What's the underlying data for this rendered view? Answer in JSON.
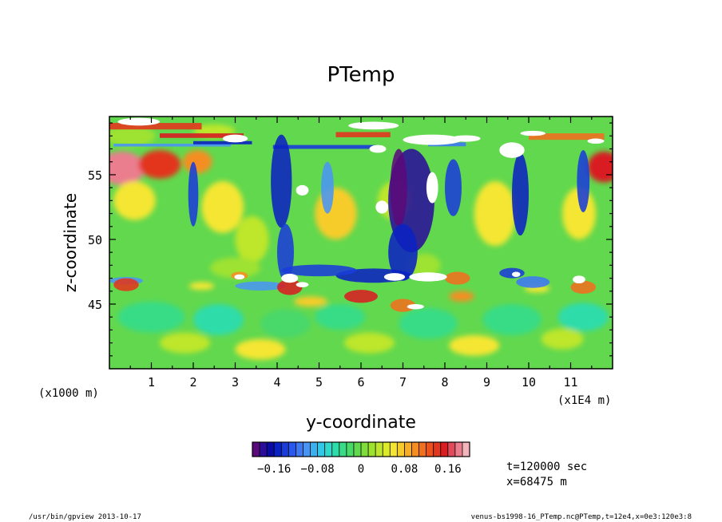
{
  "chart_data": {
    "type": "heatmap",
    "title": "PTemp",
    "xlabel": "y-coordinate",
    "ylabel": "z-coordinate",
    "xunit": "(x1E4 m)",
    "yunit": "(x1000 m)",
    "xlim": [
      0,
      12
    ],
    "ylim": [
      40,
      59.5
    ],
    "xticks": [
      "1",
      "2",
      "3",
      "4",
      "5",
      "6",
      "7",
      "8",
      "9",
      "10",
      "11"
    ],
    "yticks": [
      "45",
      "50",
      "55"
    ],
    "colorbar": {
      "ticks": [
        "-0.16",
        "-0.08",
        "0",
        "0.08",
        "0.16"
      ],
      "tick_values": [
        -0.16,
        -0.08,
        0,
        0.08,
        0.16
      ],
      "range": [
        -0.2,
        0.2
      ],
      "colors": [
        "#5a0a7a",
        "#2a0e9a",
        "#0a0aa6",
        "#0b22c2",
        "#1a3cd8",
        "#2a58ea",
        "#3e78f2",
        "#4a95f4",
        "#3ab0ee",
        "#30c8e6",
        "#30d8cc",
        "#2edcaa",
        "#38dc86",
        "#4ad86a",
        "#62d84e",
        "#7edc3c",
        "#9ee230",
        "#bee62c",
        "#dcea2a",
        "#f4e630",
        "#f6cc2a",
        "#f6ae26",
        "#f48e24",
        "#f07020",
        "#ea521e",
        "#e2361e",
        "#d81e22",
        "#e04a5a",
        "#ea7e8e",
        "#f4b4bc"
      ]
    }
  },
  "annotations": {
    "time": "t=120000 sec",
    "position": "x=68475 m"
  },
  "footer": {
    "left": "/usr/bin/gpview   2013-10-17",
    "right": "venus-bs1998-16_PTemp.nc@PTemp,t=12e4,x=0e3:120e3:8"
  }
}
